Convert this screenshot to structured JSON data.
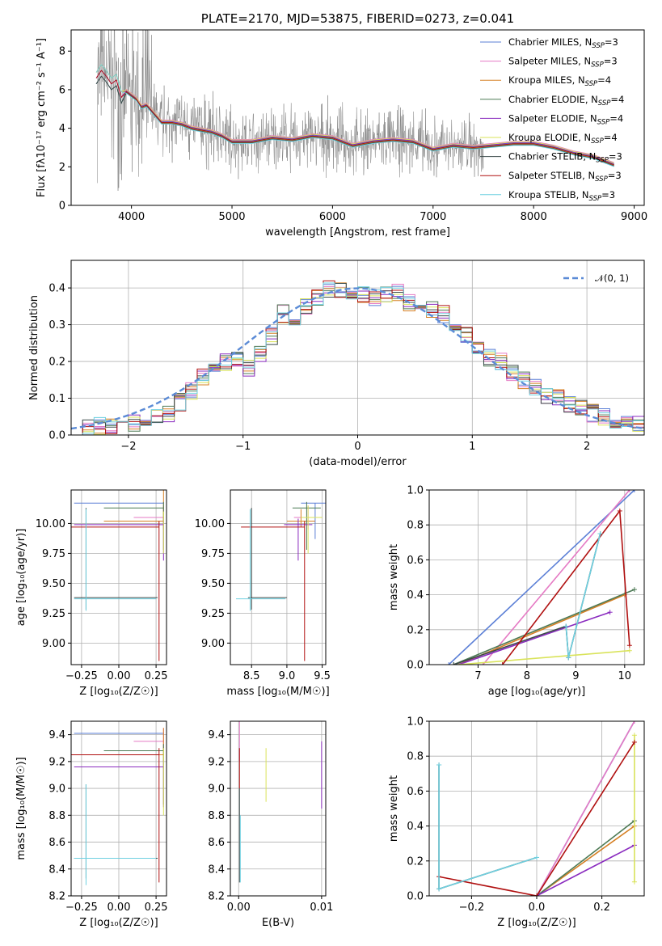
{
  "colors": {
    "data_spectrum": "#808080",
    "series": [
      "#5b7fd6",
      "#e57ac4",
      "#d68025",
      "#4d7a55",
      "#8a2bbf",
      "#d9e35a",
      "#3b4a4a",
      "#b01010",
      "#6fd0e0"
    ],
    "gaussian": "#5b8bd6"
  },
  "chart_data": [
    {
      "id": "spectrum",
      "type": "line",
      "title": "PLATE=2170, MJD=53875, FIBERID=0273, z=0.041",
      "xlabel": "wavelength [Angstrom, rest frame]",
      "ylabel": "Flux [fλ10⁻¹⁷ erg cm⁻² s⁻¹ A⁻¹]",
      "xlim": [
        3400,
        9100
      ],
      "ylim": [
        0,
        9.1
      ],
      "xticks": [
        "4000",
        "5000",
        "6000",
        "7000",
        "8000",
        "9000"
      ],
      "yticks": [
        "0",
        "2",
        "4",
        "6",
        "8"
      ],
      "legend_position": "upper-right",
      "legend": [
        "Chabrier MILES, N_SSP=3",
        "Salpeter MILES, N_SSP=3",
        "Kroupa MILES, N_SSP=4",
        "Chabrier ELODIE, N_SSP=4",
        "Salpeter ELODIE, N_SSP=4",
        "Kroupa ELODIE, N_SSP=4",
        "Chabrier STELIB, N_SSP=3",
        "Salpeter STELIB, N_SSP=3",
        "Kroupa STELIB, N_SSP=3"
      ],
      "model_curve": {
        "x": [
          3650,
          3700,
          3750,
          3800,
          3850,
          3900,
          3950,
          4000,
          4050,
          4100,
          4150,
          4200,
          4250,
          4300,
          4400,
          4500,
          4600,
          4700,
          4800,
          4900,
          5000,
          5200,
          5400,
          5600,
          5800,
          6000,
          6200,
          6400,
          6600,
          6800,
          7000,
          7200,
          7400,
          7600,
          7800,
          8000,
          8200,
          8400,
          8600,
          8800
        ],
        "y": [
          6.6,
          7.0,
          6.7,
          6.3,
          6.5,
          5.6,
          5.9,
          5.7,
          5.5,
          5.1,
          5.2,
          4.9,
          4.6,
          4.3,
          4.3,
          4.2,
          4.0,
          3.9,
          3.8,
          3.6,
          3.3,
          3.3,
          3.5,
          3.4,
          3.6,
          3.5,
          3.1,
          3.3,
          3.4,
          3.3,
          2.9,
          3.1,
          3.0,
          3.1,
          3.2,
          3.2,
          3.0,
          2.7,
          2.5,
          2.1
        ]
      }
    },
    {
      "id": "residual-histogram",
      "type": "line",
      "xlabel": "(data-model)/error",
      "ylabel": "Normed distribution",
      "xlim": [
        -2.5,
        2.5
      ],
      "ylim": [
        0,
        0.475
      ],
      "xticks": [
        "−2",
        "−1",
        "0",
        "1",
        "2"
      ],
      "yticks": [
        "0.0",
        "0.1",
        "0.2",
        "0.3",
        "0.4"
      ],
      "legend": [
        "𝒩(0, 1)"
      ],
      "bin_width": 0.1,
      "bin_start": -2.5,
      "base_hist": [
        0.015,
        0.02,
        0.025,
        0.025,
        0.03,
        0.03,
        0.03,
        0.05,
        0.06,
        0.09,
        0.12,
        0.16,
        0.17,
        0.2,
        0.21,
        0.18,
        0.22,
        0.27,
        0.33,
        0.31,
        0.35,
        0.37,
        0.4,
        0.39,
        0.38,
        0.38,
        0.37,
        0.38,
        0.39,
        0.36,
        0.36,
        0.34,
        0.33,
        0.29,
        0.27,
        0.24,
        0.21,
        0.2,
        0.17,
        0.15,
        0.13,
        0.11,
        0.1,
        0.08,
        0.07,
        0.06,
        0.05,
        0.04,
        0.03,
        0.03
      ]
    },
    {
      "id": "age-vs-Z",
      "type": "scatter",
      "xlabel": "Z [log₁₀(Z/Z☉)]",
      "ylabel": "age  [log₁₀(age/yr)]",
      "xlim": [
        -0.32,
        0.32
      ],
      "ylim": [
        8.82,
        10.28
      ],
      "xticks": [
        "−0.25",
        "0.00",
        "0.25"
      ],
      "yticks": [
        "9.00",
        "9.25",
        "9.50",
        "9.75",
        "10.00"
      ]
    },
    {
      "id": "age-vs-mass",
      "type": "scatter",
      "xlabel": "mass [log₁₀(M/M☉)]",
      "xlim": [
        8.2,
        9.55
      ],
      "ylim": [
        8.82,
        10.28
      ],
      "xticks": [
        "8.5",
        "9.0",
        "9.5"
      ],
      "yticks": [
        "9.00",
        "9.25",
        "9.50",
        "9.75",
        "10.00"
      ]
    },
    {
      "id": "massweight-vs-age",
      "type": "line",
      "xlabel": "age  [log₁₀(age/yr)]",
      "ylabel": "mass weight",
      "xlim": [
        6.0,
        10.4
      ],
      "ylim": [
        0,
        1.0
      ],
      "xticks": [
        "7",
        "8",
        "9",
        "10"
      ],
      "yticks": [
        "0.0",
        "0.2",
        "0.4",
        "0.6",
        "0.8",
        "1.0"
      ],
      "series": [
        {
          "x": [
            6.4,
            10.2
          ],
          "y": [
            0.0,
            1.0
          ]
        },
        {
          "x": [
            7.1,
            10.1
          ],
          "y": [
            0.0,
            1.0
          ]
        },
        {
          "x": [
            6.6,
            10.0
          ],
          "y": [
            0.0,
            0.4
          ]
        },
        {
          "x": [
            6.5,
            10.2
          ],
          "y": [
            0.0,
            0.43
          ]
        },
        {
          "x": [
            6.6,
            9.7
          ],
          "y": [
            0.0,
            0.3
          ]
        },
        {
          "x": [
            6.6,
            10.1
          ],
          "y": [
            0.0,
            0.08
          ]
        },
        {
          "x": [
            6.5,
            8.8,
            8.85,
            9.5
          ],
          "y": [
            0.0,
            0.22,
            0.04,
            0.75
          ]
        },
        {
          "x": [
            7.5,
            9.9,
            10.1
          ],
          "y": [
            0.0,
            0.88,
            0.11
          ]
        },
        {
          "x": [
            8.8,
            8.85,
            9.5
          ],
          "y": [
            0.22,
            0.04,
            0.75
          ]
        }
      ]
    },
    {
      "id": "mass-vs-Z",
      "type": "scatter",
      "xlabel": "Z [log₁₀(Z/Z☉)]",
      "ylabel": "mass [log₁₀(M/M☉)]",
      "xlim": [
        -0.32,
        0.32
      ],
      "ylim": [
        8.2,
        9.5
      ],
      "xticks": [
        "−0.25",
        "0.00",
        "0.25"
      ],
      "yticks": [
        "8.2",
        "8.4",
        "8.6",
        "8.8",
        "9.0",
        "9.2",
        "9.4"
      ]
    },
    {
      "id": "mass-vs-EBV",
      "type": "scatter",
      "xlabel": "E(B-V)",
      "xlim": [
        -0.001,
        0.0105
      ],
      "ylim": [
        8.2,
        9.5
      ],
      "xticks": [
        "0.00",
        "0.01"
      ],
      "yticks": [
        "8.2",
        "8.4",
        "8.6",
        "8.8",
        "9.0",
        "9.2",
        "9.4"
      ]
    },
    {
      "id": "massweight-vs-Z",
      "type": "line",
      "xlabel": "Z [log₁₀(Z/Z☉)]",
      "ylabel": "mass weight",
      "xlim": [
        -0.33,
        0.33
      ],
      "ylim": [
        0,
        1.0
      ],
      "xticks": [
        "−0.2",
        "0.0",
        "0.2"
      ],
      "yticks": [
        "0.0",
        "0.2",
        "0.4",
        "0.6",
        "0.8",
        "1.0"
      ],
      "series": [
        {
          "x": [
            0.0,
            0.3
          ],
          "y": [
            0.0,
            1.0
          ]
        },
        {
          "x": [
            0.0,
            0.3
          ],
          "y": [
            0.0,
            1.0
          ]
        },
        {
          "x": [
            0.0,
            0.3
          ],
          "y": [
            0.0,
            0.4
          ]
        },
        {
          "x": [
            0.0,
            0.3
          ],
          "y": [
            0.0,
            0.43
          ]
        },
        {
          "x": [
            0.0,
            0.3
          ],
          "y": [
            0.0,
            0.29
          ]
        },
        {
          "x": [
            0.3,
            0.3
          ],
          "y": [
            0.08,
            0.92
          ]
        },
        {
          "x": [
            -0.3,
            -0.3,
            0.0
          ],
          "y": [
            0.75,
            0.04,
            0.22
          ]
        },
        {
          "x": [
            -0.3,
            0.0,
            0.3
          ],
          "y": [
            0.11,
            0.0,
            0.88
          ]
        },
        {
          "x": [
            -0.3,
            -0.3,
            0.0
          ],
          "y": [
            0.75,
            0.04,
            0.22
          ]
        }
      ]
    }
  ]
}
